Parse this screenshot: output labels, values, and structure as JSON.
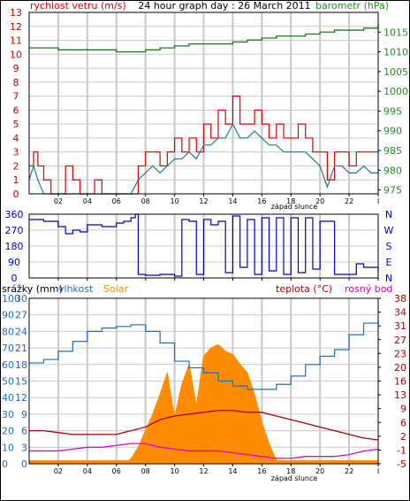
{
  "colors": {
    "wind": "#e00000",
    "gust_line": "#1f7a8a",
    "pressure": "#1e7a1e",
    "direction": "#0000cc",
    "humidity": "#1f6fc0",
    "solar": "#ff8c00",
    "temperature": "#aa0000",
    "dew_point": "#dd00dd",
    "left_axis": "#cc0000",
    "right_axis": "#2a8a2a",
    "hum_axis": "#1f6fc0",
    "rain_axis": "#2a5bd7",
    "grid": "#c8c8c8"
  },
  "chart_data": [
    {
      "type": "line",
      "title": "24 hour graph day : 26 March 2011",
      "ylabel": "rychlost vetru (m/s)",
      "y2label": "barometr (hPa)",
      "xlabel_annotation": "západ slunce",
      "x_ticks": [
        "02",
        "04",
        "06",
        "08",
        "10",
        "12",
        "14",
        "16",
        "18",
        "20",
        "22",
        "I"
      ],
      "x_range": [
        0,
        24
      ],
      "y_ticks": [
        "0",
        "1",
        "2",
        "3",
        "4",
        "5",
        "6",
        "7",
        "8",
        "9",
        "10",
        "11",
        "12",
        "13"
      ],
      "y_range": [
        0,
        13
      ],
      "y2_ticks": [
        "975",
        "980",
        "985",
        "990",
        "995",
        "1000",
        "1005",
        "1010",
        "1015"
      ],
      "y2_range": [
        974,
        1020
      ],
      "series": [
        {
          "role": "wind",
          "x": [
            0.0,
            0.3,
            0.6,
            1.0,
            1.5,
            2.0,
            2.5,
            3.0,
            3.5,
            4.0,
            4.5,
            5.0,
            5.5,
            6.0,
            6.5,
            7.0,
            7.5,
            8.0,
            8.5,
            9.0,
            9.5,
            10.0,
            10.5,
            11.0,
            11.5,
            12.0,
            12.5,
            13.0,
            13.5,
            14.0,
            14.5,
            15.0,
            15.5,
            16.0,
            16.5,
            17.0,
            17.5,
            18.0,
            18.5,
            19.0,
            19.5,
            20.0,
            20.5,
            21.0,
            21.5,
            22.0,
            22.5,
            23.0,
            23.5,
            24.0
          ],
          "values": [
            2,
            3,
            2,
            1,
            0,
            0,
            2,
            1,
            0,
            0,
            1,
            0,
            0,
            0,
            0,
            0,
            2,
            3,
            3,
            2,
            3,
            4,
            3,
            4,
            3,
            5,
            4,
            6,
            5,
            7,
            5,
            5,
            6,
            5,
            4,
            5,
            4,
            4,
            5,
            4,
            3,
            3,
            1,
            3,
            3,
            2,
            3,
            3,
            3,
            3
          ]
        },
        {
          "role": "gust_line",
          "x": [
            0.0,
            0.3,
            0.6,
            1.0,
            1.5,
            2.0,
            2.5,
            3.0,
            3.5,
            4.0,
            4.5,
            5.0,
            5.5,
            6.0,
            6.5,
            7.0,
            7.5,
            8.0,
            8.5,
            9.0,
            9.5,
            10.0,
            10.5,
            11.0,
            11.5,
            12.0,
            12.5,
            13.0,
            13.5,
            14.0,
            14.5,
            15.0,
            15.5,
            16.0,
            16.5,
            17.0,
            17.5,
            18.0,
            18.5,
            19.0,
            19.5,
            20.0,
            20.5,
            21.0,
            21.5,
            22.0,
            22.5,
            23.0,
            23.5,
            24.0
          ],
          "values": [
            1,
            2,
            1,
            0,
            0,
            0,
            0,
            0,
            0,
            0,
            0,
            0,
            0,
            0,
            0,
            0,
            1,
            1.5,
            2,
            1.5,
            2,
            2.5,
            2.5,
            3,
            2.5,
            3.5,
            3.5,
            4,
            4,
            5,
            4,
            4,
            4.5,
            4,
            3.5,
            3.5,
            3,
            3,
            3,
            3,
            2.5,
            2,
            0.5,
            2,
            2,
            1.5,
            1.5,
            2,
            1.5,
            1.5
          ]
        },
        {
          "role": "pressure",
          "axis": "y2",
          "x": [
            0,
            1,
            2,
            3,
            4,
            5,
            6,
            7,
            8,
            9,
            10,
            11,
            12,
            13,
            14,
            15,
            16,
            17,
            18,
            19,
            20,
            21,
            22,
            23,
            24
          ],
          "values": [
            1011,
            1011,
            1010.5,
            1010.5,
            1010.5,
            1010.5,
            1010,
            1010,
            1010.5,
            1011,
            1011.5,
            1012,
            1012,
            1012,
            1012.5,
            1013,
            1013.5,
            1014,
            1014,
            1014.5,
            1015,
            1015.5,
            1015.5,
            1016,
            1017
          ]
        }
      ]
    },
    {
      "type": "line",
      "ylabel_left_ticks": [
        "0",
        "90",
        "180",
        "270",
        "360"
      ],
      "y_range": [
        0,
        360
      ],
      "y_right_labels": [
        "N",
        "W",
        "S",
        "E",
        "N"
      ],
      "x_range": [
        0,
        24
      ],
      "series": [
        {
          "role": "direction",
          "x": [
            0,
            1,
            2,
            2.5,
            3,
            3.5,
            4,
            5,
            6,
            6.5,
            7,
            7.3,
            7.5,
            8,
            9,
            10,
            10.5,
            11,
            11.5,
            12,
            12.5,
            13,
            13.5,
            14,
            14.5,
            15,
            15.5,
            16,
            16.5,
            17,
            17.5,
            18,
            18.5,
            19,
            19.5,
            20,
            21,
            22,
            22.5,
            23,
            24
          ],
          "values": [
            330,
            320,
            290,
            250,
            270,
            260,
            300,
            290,
            310,
            320,
            340,
            360,
            20,
            15,
            20,
            10,
            330,
            320,
            20,
            330,
            300,
            320,
            30,
            350,
            60,
            330,
            20,
            340,
            40,
            340,
            20,
            340,
            30,
            340,
            50,
            320,
            20,
            20,
            80,
            60,
            30
          ]
        }
      ]
    },
    {
      "type": "area",
      "labels": {
        "rain": "srážky (mm)",
        "humidity": "vlhkost",
        "solar": "Solar",
        "temperature": "teplota (°C)",
        "dew_point": "rosný bod"
      },
      "xlabel_annotation": "západ slunce",
      "x_ticks": [
        "02",
        "04",
        "06",
        "08",
        "10",
        "12",
        "14",
        "16",
        "18",
        "20",
        "22",
        "I"
      ],
      "x_range": [
        0,
        24
      ],
      "humidity_ticks": [
        "0",
        "10",
        "20",
        "30",
        "40",
        "50",
        "60",
        "70",
        "80",
        "90",
        "100"
      ],
      "humidity_range": [
        0,
        100
      ],
      "rain_ticks": [
        "0",
        "3",
        "6",
        "9",
        "12",
        "15",
        "18",
        "21",
        "24",
        "27",
        "30"
      ],
      "rain_range": [
        0,
        30
      ],
      "temp_ticks": [
        "-5",
        "-1",
        "2",
        "6",
        "9",
        "13",
        "16",
        "20",
        "23",
        "27",
        "31",
        "34",
        "38"
      ],
      "temp_range": [
        -5,
        40
      ],
      "series": [
        {
          "role": "humidity",
          "x": [
            0,
            1,
            2,
            3,
            4,
            5,
            6,
            7,
            8,
            9,
            10,
            11,
            12,
            13,
            14,
            15,
            16,
            17,
            18,
            19,
            20,
            21,
            22,
            23,
            24
          ],
          "values": [
            61,
            63,
            68,
            74,
            80,
            82,
            83,
            84,
            80,
            73,
            62,
            58,
            55,
            50,
            47,
            45,
            45,
            48,
            53,
            60,
            65,
            69,
            78,
            85,
            86
          ]
        },
        {
          "role": "temperature",
          "axis": "temp",
          "x": [
            0,
            1,
            2,
            3,
            4,
            5,
            6,
            7,
            8,
            9,
            10,
            11,
            12,
            13,
            14,
            15,
            16,
            17,
            18,
            19,
            20,
            21,
            22,
            23,
            24
          ],
          "values": [
            4,
            4,
            3.5,
            3,
            3,
            3,
            3,
            4,
            5,
            7,
            8,
            8.5,
            9,
            9.5,
            9.5,
            9,
            9,
            8,
            7,
            6,
            5,
            4,
            3,
            2,
            1.5
          ]
        },
        {
          "role": "dew_point",
          "axis": "temp",
          "x": [
            0,
            1,
            2,
            3,
            4,
            5,
            6,
            7,
            8,
            9,
            10,
            11,
            12,
            13,
            14,
            15,
            16,
            17,
            18,
            19,
            20,
            21,
            22,
            23,
            24
          ],
          "values": [
            -1.5,
            -1.5,
            -1.5,
            -1,
            -0.5,
            -0.5,
            0,
            0.5,
            0.5,
            -0.5,
            -1,
            -1.5,
            -1.5,
            -1.5,
            -2,
            -2.5,
            -3,
            -3.5,
            -3.5,
            -3,
            -3,
            -3,
            -2.5,
            -1.5,
            -1
          ]
        },
        {
          "role": "solar",
          "x": [
            0,
            6.5,
            7.0,
            7.5,
            8.0,
            8.5,
            9.0,
            9.5,
            10.0,
            10.5,
            11.0,
            11.5,
            12.0,
            12.5,
            13.0,
            13.5,
            14.0,
            14.5,
            15.0,
            15.5,
            16.0,
            16.5,
            17.0,
            24
          ],
          "values": [
            0,
            0,
            3,
            10,
            20,
            30,
            42,
            55,
            28,
            48,
            60,
            35,
            65,
            70,
            72,
            68,
            66,
            60,
            55,
            42,
            25,
            12,
            2,
            0
          ]
        }
      ]
    }
  ]
}
